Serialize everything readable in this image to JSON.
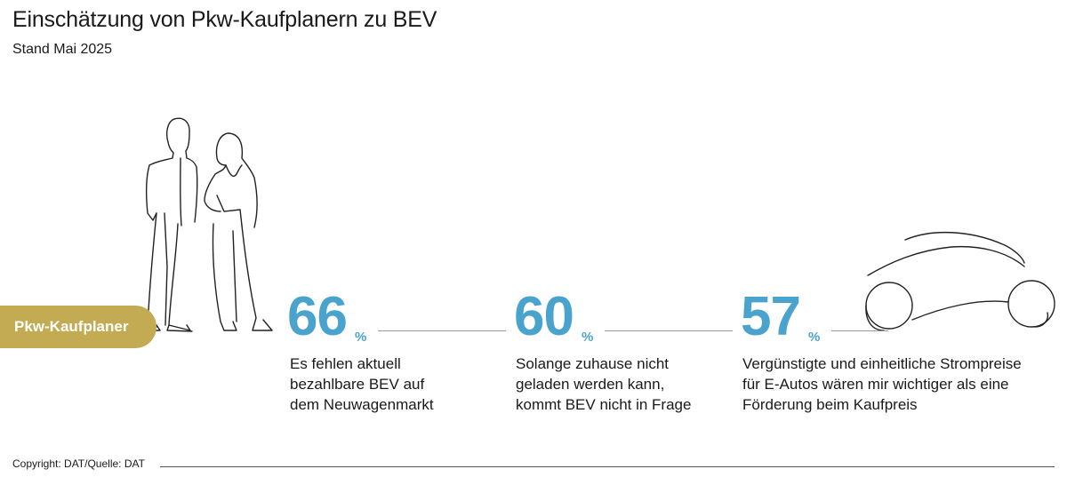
{
  "title": "Einschätzung von Pkw-Kaufplanern zu BEV",
  "subtitle": "Stand Mai 2025",
  "badge": "Pkw-Kaufplaner",
  "footer": "Copyright: DAT/Quelle: DAT",
  "colors": {
    "accent": "#4aa3cd",
    "badge": "#c2ab52",
    "line": "#9a9a9a",
    "text": "#1a1a1a"
  },
  "chart_data": {
    "type": "table",
    "unit": "%",
    "items": [
      {
        "value": 66,
        "label": "Es fehlen aktuell\nbezahlbare BEV auf\ndem Neuwagenmarkt"
      },
      {
        "value": 60,
        "label": "Solange zuhause nicht\ngeladen werden kann,\nkommt BEV nicht in Frage"
      },
      {
        "value": 57,
        "label": "Vergünstigte und einheitliche Strompreise\nfür E-Autos wären mir wichtiger als eine\nFörderung beim Kaufpreis"
      }
    ]
  }
}
